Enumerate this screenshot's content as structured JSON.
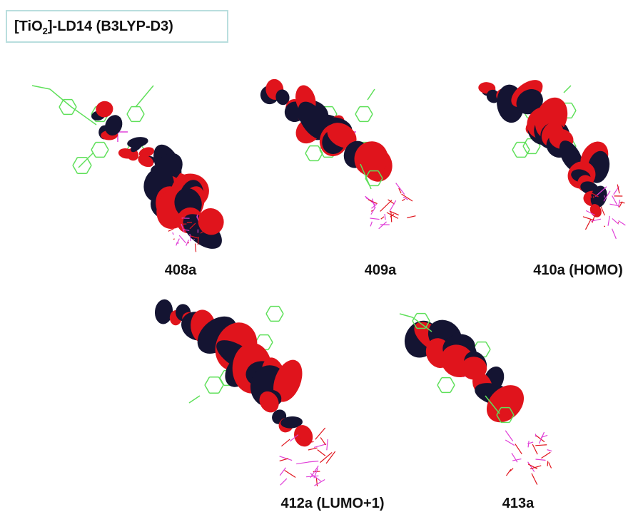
{
  "header": {
    "title": [
      "[TiO",
      "2",
      "]-LD14 (B3LYP-D3)"
    ]
  },
  "panels": [
    {
      "label": "408a"
    },
    {
      "label": "409a"
    },
    {
      "label": "410a (HOMO)"
    },
    {
      "label": "412a (LUMO+1)"
    },
    {
      "label": "413a"
    }
  ]
}
